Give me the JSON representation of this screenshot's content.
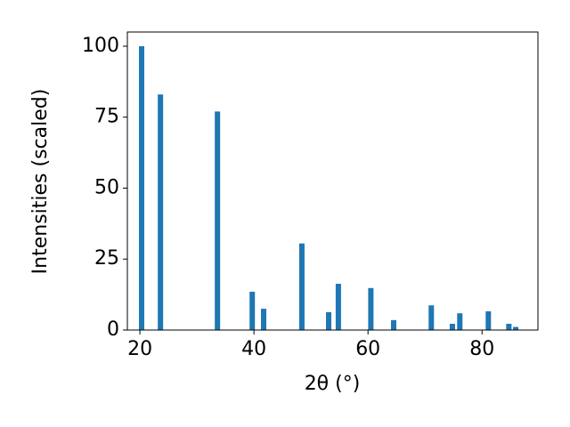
{
  "chart_data": {
    "type": "bar",
    "x": [
      20.3,
      23.6,
      33.6,
      39.7,
      41.7,
      48.4,
      53.1,
      54.8,
      60.5,
      64.5,
      71.1,
      74.8,
      76.1,
      81.1,
      84.7,
      85.9
    ],
    "values": [
      100,
      83,
      77,
      13.5,
      7.5,
      30.5,
      6.3,
      16.3,
      14.8,
      3.5,
      8.7,
      2.2,
      5.9,
      6.6,
      2.2,
      1.1
    ],
    "color": "#1f77b4",
    "xlabel": "2θ (°)",
    "ylabel": "Intensities (scaled)",
    "xlim": [
      17.8,
      89.8
    ],
    "xticks": [
      20,
      40,
      60,
      80
    ],
    "ylim": [
      0,
      105
    ],
    "yticks": [
      0,
      25,
      50,
      75,
      100
    ]
  }
}
